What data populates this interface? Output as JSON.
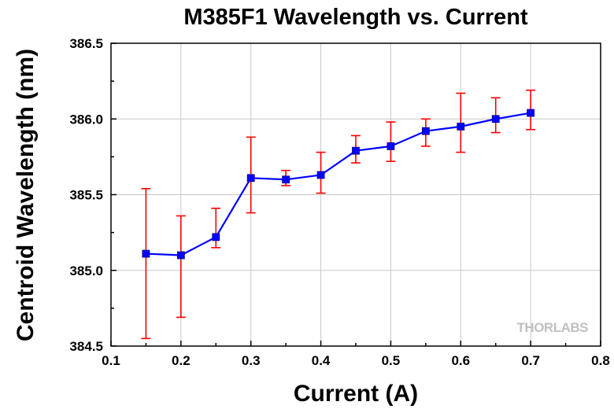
{
  "chart_data": {
    "type": "line",
    "title": "M385F1 Wavelength vs. Current",
    "xlabel": "Current (A)",
    "ylabel": "Centroid Wavelength (nm)",
    "xlim": [
      0.1,
      0.8
    ],
    "ylim": [
      384.5,
      386.5
    ],
    "xticks": [
      "0.1",
      "0.2",
      "0.3",
      "0.4",
      "0.5",
      "0.6",
      "0.7",
      "0.8"
    ],
    "yticks": [
      "384.5",
      "385.0",
      "385.5",
      "386.0",
      "386.5"
    ],
    "grid": true,
    "series": [
      {
        "x": [
          0.15,
          0.2,
          0.25,
          0.3,
          0.35,
          0.4,
          0.45,
          0.5,
          0.55,
          0.6,
          0.65,
          0.7
        ],
        "y": [
          385.11,
          385.1,
          385.22,
          385.61,
          385.6,
          385.63,
          385.79,
          385.82,
          385.92,
          385.95,
          386.0,
          386.04
        ],
        "err_high": [
          385.54,
          385.36,
          385.41,
          385.88,
          385.66,
          385.78,
          385.89,
          385.98,
          386.0,
          386.17,
          386.14,
          386.19
        ],
        "err_low": [
          384.55,
          384.69,
          385.15,
          385.38,
          385.56,
          385.51,
          385.71,
          385.72,
          385.82,
          385.78,
          385.91,
          385.93
        ],
        "line_color": "#0000ff",
        "marker_color": "#0000ff",
        "error_color": "#ff0000"
      }
    ]
  },
  "watermark": {
    "text": "THORLABS"
  }
}
